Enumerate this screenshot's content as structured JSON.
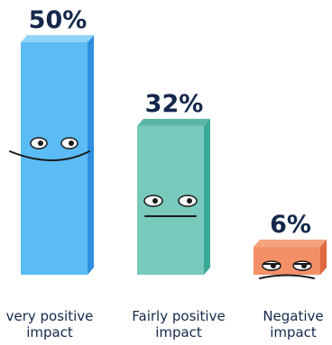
{
  "chart_data": {
    "type": "bar",
    "categories": [
      [
        "very positive",
        "impact"
      ],
      [
        "Fairly positive",
        "impact"
      ],
      [
        "Negative",
        "impact"
      ]
    ],
    "values": [
      50,
      32,
      6
    ],
    "value_labels": [
      "50%",
      "32%",
      "6%"
    ],
    "ylim": [
      0,
      50
    ],
    "grid": false,
    "legend": "none",
    "title": "",
    "xlabel": "",
    "ylabel": ""
  },
  "colors": {
    "text": "#14284b",
    "bar_fronts": [
      "#5bbcf5",
      "#79c9bc",
      "#f49068"
    ],
    "bar_sides": [
      "#2f8fe0",
      "#3aa896",
      "#e0683e"
    ],
    "bar_tops": [
      "#8fd2fa",
      "#5ab7a8",
      "#f6a27f"
    ],
    "face_features": "#1a1a1a",
    "eye_white": "#ffffff"
  }
}
